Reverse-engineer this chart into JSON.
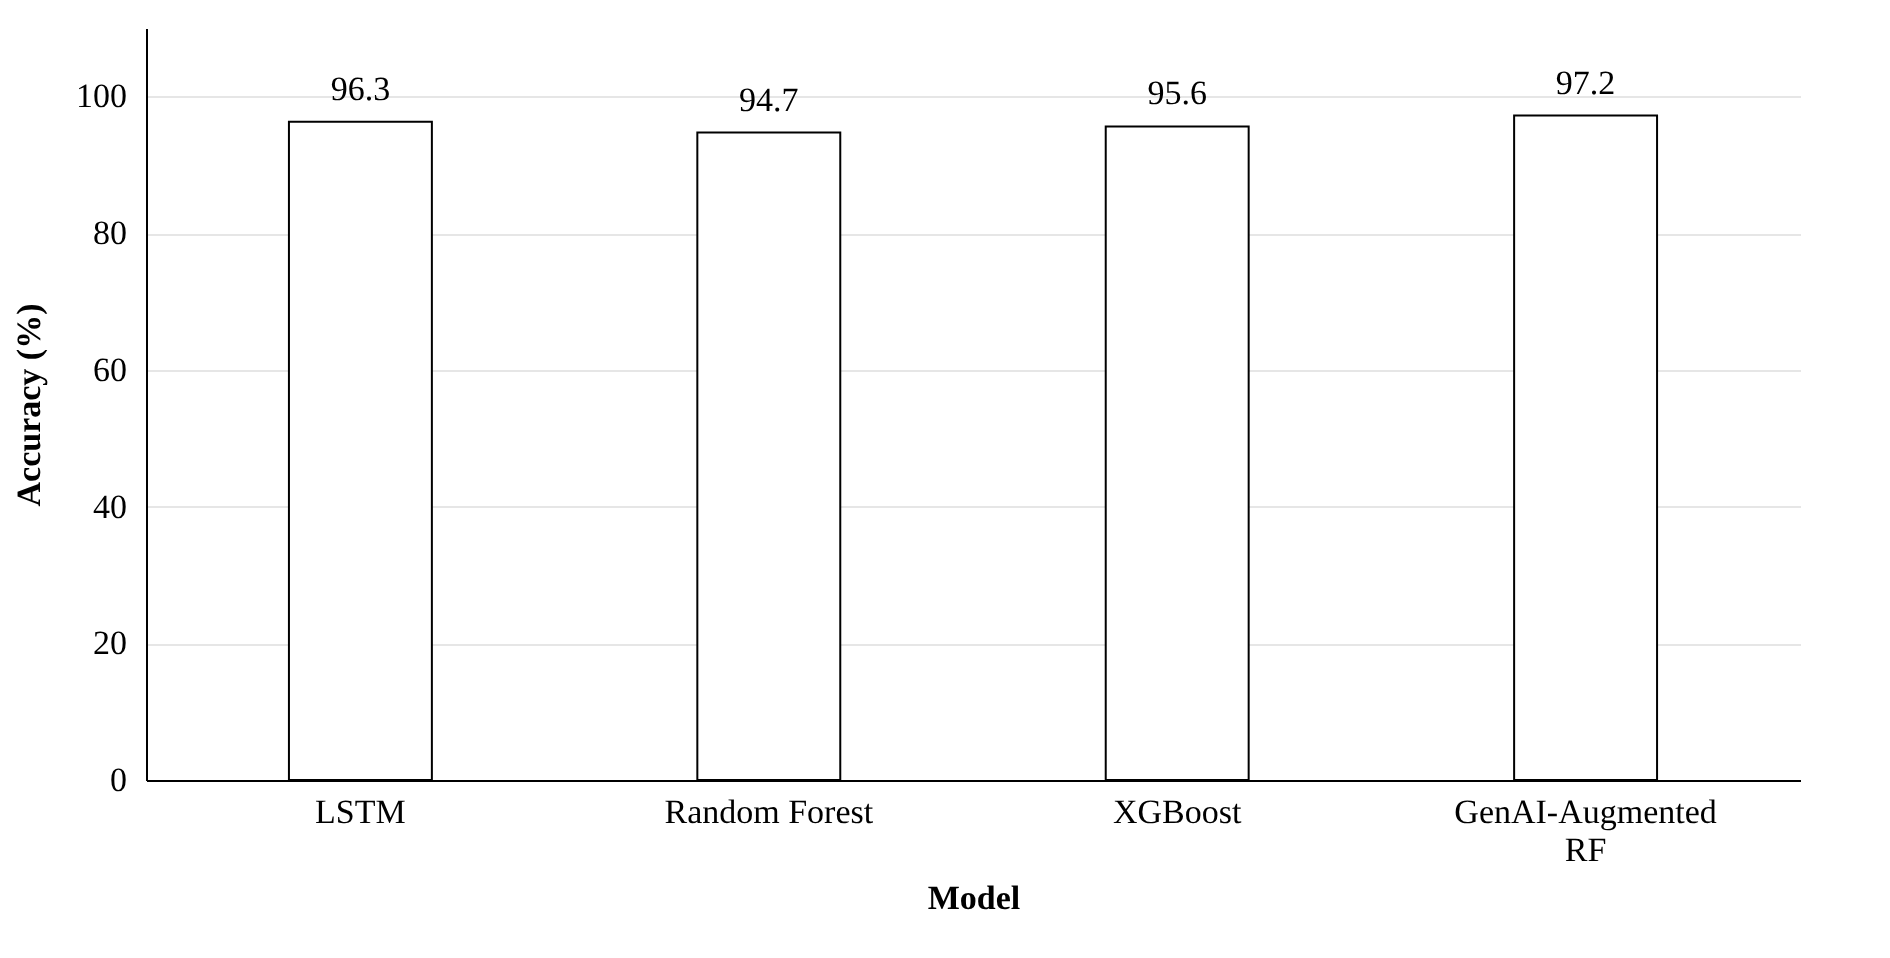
{
  "chart_data": {
    "type": "bar",
    "xlabel": "Model",
    "ylabel": "Accuracy (%)",
    "categories": [
      "LSTM",
      "Random Forest",
      "XGBoost",
      "GenAI-Augmented RF"
    ],
    "values": [
      96.3,
      94.7,
      95.6,
      97.2
    ],
    "color": "#ffffff",
    "ylim": [
      0,
      110
    ],
    "yticks": [
      0,
      20,
      40,
      60,
      80,
      100
    ],
    "grid": "y",
    "data_labels": true
  }
}
